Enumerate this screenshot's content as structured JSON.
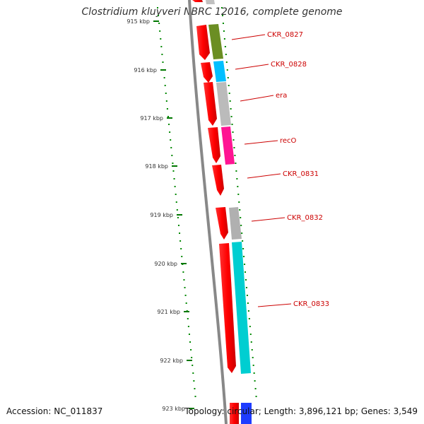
{
  "title": "Clostridium kluyveri NBRC 12016, complete genome",
  "accession": "Accession: NC_011837",
  "summary": "Topology: circular; Length: 3,896,121 bp; Genes: 3,549",
  "ticks": [
    "915 kbp",
    "916 kbp",
    "917 kbp",
    "918 kbp",
    "919 kbp",
    "920 kbp",
    "921 kbp",
    "922 kbp",
    "923 kbp"
  ],
  "genes": [
    {
      "label": "CKR_0827",
      "color": "#6b8e23"
    },
    {
      "label": "CKR_0828",
      "color": "#00bfff"
    },
    {
      "label": "era",
      "color": "#bbbbbb"
    },
    {
      "label": "recO",
      "color": "#ff1493"
    },
    {
      "label": "CKR_0831",
      "color": "#ffffff"
    },
    {
      "label": "CKR_0832",
      "color": "#b0b0b0"
    },
    {
      "label": "CKR_0833",
      "color": "#00ced1"
    }
  ],
  "colors": {
    "cds": "#ff0000",
    "backbone": "#888888",
    "tick": "#007700",
    "label": "#cc0000"
  }
}
